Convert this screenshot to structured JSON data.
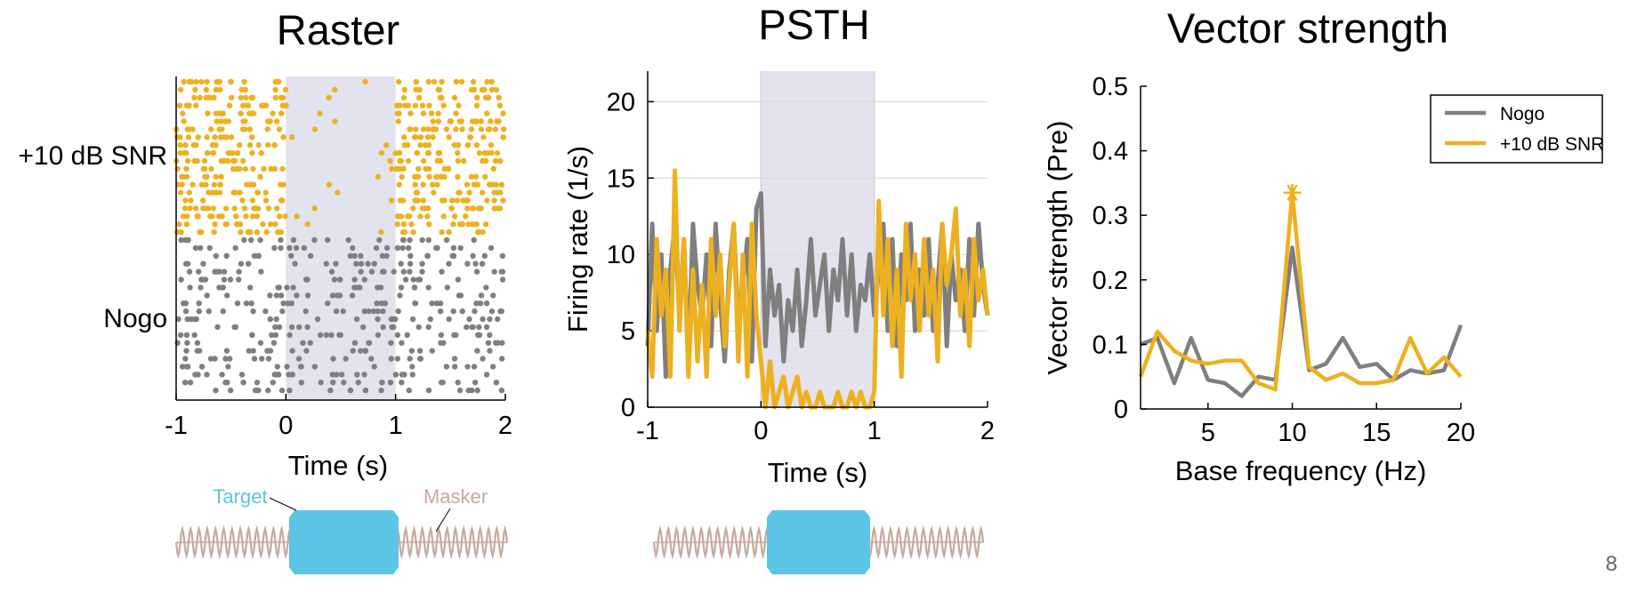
{
  "slide": {
    "page_number": "8"
  },
  "colors": {
    "nogo": "#7f7f7f",
    "snr": "#edb120",
    "shade": "#e3e3ee",
    "target": "#5bc5e6",
    "masker": "#c7a79e",
    "axis": "#000000",
    "grid": "#dcdcdc"
  },
  "chart_data": [
    {
      "id": "raster",
      "type": "scatter",
      "title": "Raster",
      "xlabel": "Time (s)",
      "ylabel": "",
      "xlim": [
        -1,
        2
      ],
      "xticks": [
        "-1",
        "0",
        "1",
        "2"
      ],
      "stimulus_window": [
        0,
        1
      ],
      "grid": false,
      "series": [
        {
          "name": "+10 dB SNR",
          "color_key": "snr",
          "trials": 20,
          "rate_before": 12,
          "rate_during": 0.7,
          "rate_after": 13
        },
        {
          "name": "Nogo",
          "color_key": "nogo",
          "trials": 20,
          "rate_before": 6.5,
          "rate_during": 6.5,
          "rate_after": 6.5
        }
      ],
      "row_labels": [
        "+10 dB SNR",
        "Nogo"
      ],
      "stimulus_legend": {
        "target": "Target",
        "masker": "Masker"
      }
    },
    {
      "id": "psth",
      "type": "line",
      "title": "PSTH",
      "xlabel": "Time (s)",
      "ylabel": "Firing rate (1/s)",
      "xlim": [
        -1,
        2
      ],
      "ylim": [
        0,
        22
      ],
      "xticks": [
        "-1",
        "0",
        "1",
        "2"
      ],
      "yticks": [
        "0",
        "5",
        "10",
        "15",
        "20"
      ],
      "stimulus_window": [
        0,
        1
      ],
      "grid": true,
      "x": [
        -1.0,
        -0.96,
        -0.92,
        -0.88,
        -0.84,
        -0.8,
        -0.76,
        -0.72,
        -0.68,
        -0.64,
        -0.6,
        -0.56,
        -0.52,
        -0.48,
        -0.44,
        -0.4,
        -0.36,
        -0.32,
        -0.28,
        -0.24,
        -0.2,
        -0.16,
        -0.12,
        -0.08,
        -0.04,
        0.0,
        0.04,
        0.08,
        0.12,
        0.16,
        0.2,
        0.24,
        0.28,
        0.32,
        0.36,
        0.4,
        0.44,
        0.48,
        0.52,
        0.56,
        0.6,
        0.64,
        0.68,
        0.72,
        0.76,
        0.8,
        0.84,
        0.88,
        0.92,
        0.96,
        1.0,
        1.04,
        1.08,
        1.12,
        1.16,
        1.2,
        1.24,
        1.28,
        1.32,
        1.36,
        1.4,
        1.44,
        1.48,
        1.52,
        1.56,
        1.6,
        1.64,
        1.68,
        1.72,
        1.76,
        1.8,
        1.84,
        1.88,
        1.92,
        1.96,
        2.0
      ],
      "series": [
        {
          "name": "Nogo",
          "color_key": "nogo",
          "values": [
            4,
            12,
            5,
            10,
            2,
            9,
            12,
            6,
            11,
            3,
            12,
            8,
            6,
            10,
            4,
            12,
            7,
            3,
            9,
            12,
            5,
            8,
            11,
            3,
            13,
            14,
            4,
            9,
            6,
            8,
            3,
            7,
            5,
            9,
            4,
            7,
            11,
            6,
            8,
            10,
            5,
            9,
            7,
            11,
            6,
            10,
            5,
            8,
            7,
            10,
            6,
            9,
            12,
            5,
            11,
            4,
            10,
            7,
            12,
            5,
            9,
            6,
            11,
            5,
            8,
            12,
            4,
            10,
            7,
            9,
            5,
            11,
            6,
            12,
            8,
            6
          ]
        },
        {
          "name": "+10 dB SNR",
          "color_key": "snr",
          "values": [
            5,
            2,
            11,
            6,
            9,
            2,
            15.5,
            5,
            11,
            2,
            9,
            3,
            8,
            2,
            11,
            6,
            10,
            4,
            8,
            12,
            3,
            10,
            2,
            12,
            6,
            3,
            0,
            3,
            0,
            1,
            2,
            0,
            1,
            2,
            0,
            1,
            0,
            0,
            1,
            0,
            0,
            0,
            1,
            0,
            0,
            1,
            0,
            1,
            0,
            0,
            1,
            13.5,
            6,
            11,
            4,
            9,
            2,
            12,
            7,
            10,
            5,
            11,
            6,
            9,
            3,
            12,
            8,
            10,
            13,
            6,
            9,
            4,
            11,
            7,
            9,
            6
          ]
        }
      ]
    },
    {
      "id": "vector-strength",
      "type": "line",
      "title": "Vector strength",
      "xlabel": "Base frequency (Hz)",
      "ylabel": "Vector strength (Pre)",
      "xlim": [
        1,
        20
      ],
      "ylim": [
        0,
        0.5
      ],
      "xticks": [
        "5",
        "10",
        "15",
        "20"
      ],
      "yticks": [
        "0",
        "0.1",
        "0.2",
        "0.3",
        "0.4",
        "0.5"
      ],
      "grid": false,
      "legend": "top-right",
      "x": [
        1,
        2,
        3,
        4,
        5,
        6,
        7,
        8,
        9,
        10,
        11,
        12,
        13,
        14,
        15,
        16,
        17,
        18,
        19,
        20
      ],
      "series": [
        {
          "name": "Nogo",
          "color_key": "nogo",
          "values": [
            0.1,
            0.11,
            0.04,
            0.11,
            0.045,
            0.04,
            0.02,
            0.05,
            0.045,
            0.25,
            0.06,
            0.07,
            0.11,
            0.065,
            0.07,
            0.045,
            0.06,
            0.055,
            0.06,
            0.13
          ]
        },
        {
          "name": "+10 dB SNR",
          "color_key": "snr",
          "values": [
            0.05,
            0.12,
            0.09,
            0.075,
            0.07,
            0.075,
            0.075,
            0.04,
            0.03,
            0.335,
            0.065,
            0.045,
            0.055,
            0.04,
            0.04,
            0.045,
            0.11,
            0.055,
            0.08,
            0.05
          ]
        }
      ],
      "annotation": {
        "marker": "*",
        "x": 10,
        "y": 0.335,
        "series": "+10 dB SNR"
      }
    }
  ]
}
